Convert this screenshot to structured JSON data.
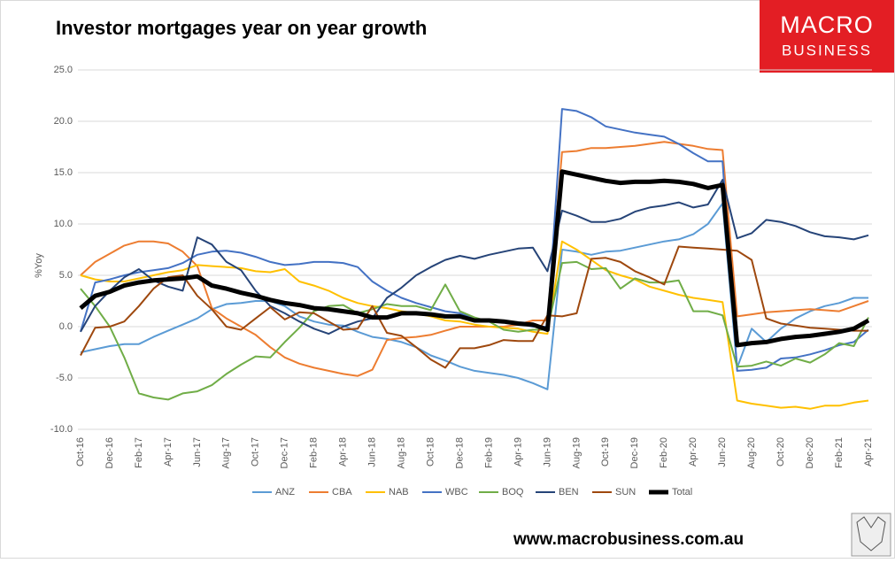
{
  "chart_data": {
    "type": "line",
    "title": "Investor mortgages year on year growth",
    "y_label": "%Yoy",
    "logo": [
      "MACRO",
      "BUSINESS"
    ],
    "footer": "www.macrobusiness.com.au",
    "categories": [
      "Oct-16",
      null,
      "Dec-16",
      null,
      "Feb-17",
      null,
      "Apr-17",
      null,
      "Jun-17",
      null,
      "Aug-17",
      null,
      "Oct-17",
      null,
      "Dec-17",
      null,
      "Feb-18",
      null,
      "Apr-18",
      null,
      "Jun-18",
      null,
      "Aug-18",
      null,
      "Oct-18",
      null,
      "Dec-18",
      null,
      "Feb-19",
      null,
      "Apr-19",
      null,
      "Jun-19",
      null,
      "Aug-19",
      null,
      "Oct-19",
      null,
      "Dec-19",
      null,
      "Feb-20",
      null,
      "Apr-20",
      null,
      "Jun-20",
      null,
      "Aug-20",
      null,
      "Oct-20",
      null,
      "Dec-20",
      null,
      "Feb-21",
      null,
      "Apr-21"
    ],
    "ylim": [
      -10,
      25
    ],
    "yticks": [
      {
        "value": -10,
        "label": "-10.0"
      },
      {
        "value": -5,
        "label": "-5.0"
      },
      {
        "value": 0,
        "label": "0.0"
      },
      {
        "value": 5,
        "label": "5.0"
      },
      {
        "value": 10,
        "label": "10.0"
      },
      {
        "value": 15,
        "label": "15.0"
      },
      {
        "value": 20,
        "label": "20.0"
      },
      {
        "value": 25,
        "label": "25.0"
      }
    ],
    "grid": true,
    "legend": "bottom",
    "series": [
      {
        "name": "ANZ",
        "color": "#5b9bd5",
        "width": 2,
        "values": [
          -2.5,
          -2.2,
          -1.9,
          -1.7,
          -1.7,
          -1.0,
          -0.4,
          0.2,
          0.8,
          1.7,
          2.2,
          2.3,
          2.5,
          2.5,
          2.0,
          1.0,
          0.5,
          0.2,
          0.1,
          -0.5,
          -1.0,
          -1.2,
          -1.5,
          -2.0,
          -2.8,
          -3.3,
          -3.9,
          -4.3,
          -4.5,
          -4.7,
          -5.0,
          -5.5,
          -6.1,
          7.5,
          7.3,
          7.0,
          7.3,
          7.4,
          7.7,
          8.0,
          8.3,
          8.5,
          9.0,
          10.0,
          12.0,
          -4.0,
          -0.2,
          -1.5,
          -0.2,
          0.8,
          1.5,
          2.0,
          2.3,
          2.8,
          2.8
        ]
      },
      {
        "name": "CBA",
        "color": "#ed7d31",
        "width": 2,
        "values": [
          5.0,
          6.3,
          7.1,
          7.9,
          8.3,
          8.3,
          8.1,
          7.3,
          5.9,
          1.8,
          0.8,
          0.0,
          -0.8,
          -2.0,
          -3.0,
          -3.6,
          -4.0,
          -4.3,
          -4.6,
          -4.8,
          -4.2,
          -1.3,
          -1.1,
          -1.0,
          -0.8,
          -0.4,
          0.0,
          0.0,
          0.0,
          0.0,
          0.2,
          0.6,
          0.6,
          17.0,
          17.1,
          17.4,
          17.4,
          17.5,
          17.6,
          17.8,
          18.0,
          17.8,
          17.6,
          17.3,
          17.2,
          1.0,
          1.2,
          1.4,
          1.5,
          1.6,
          1.7,
          1.6,
          1.5,
          2.0,
          2.5
        ]
      },
      {
        "name": "NAB",
        "color": "#ffc000",
        "width": 2,
        "values": [
          5.0,
          4.6,
          4.4,
          4.4,
          4.7,
          5.0,
          5.3,
          5.5,
          6.0,
          5.9,
          5.8,
          5.7,
          5.4,
          5.3,
          5.6,
          4.4,
          4.0,
          3.5,
          2.8,
          2.3,
          2.0,
          1.8,
          1.5,
          1.3,
          1.0,
          0.6,
          0.5,
          0.2,
          0.0,
          -0.1,
          -0.2,
          -0.5,
          -0.7,
          8.3,
          7.5,
          6.5,
          5.5,
          5.0,
          4.6,
          3.9,
          3.5,
          3.1,
          2.8,
          2.6,
          2.4,
          -7.2,
          -7.5,
          -7.7,
          -7.9,
          -7.8,
          -8.0,
          -7.7,
          -7.7,
          -7.4,
          -7.2
        ]
      },
      {
        "name": "WBC",
        "color": "#4472c4",
        "width": 2,
        "values": [
          -0.5,
          4.3,
          4.6,
          5.0,
          5.3,
          5.5,
          5.7,
          6.2,
          7.0,
          7.3,
          7.4,
          7.2,
          6.8,
          6.3,
          6.0,
          6.1,
          6.3,
          6.3,
          6.2,
          5.8,
          4.4,
          3.5,
          2.8,
          2.3,
          1.9,
          1.5,
          1.3,
          0.8,
          0.6,
          0.5,
          0.3,
          0.0,
          0.0,
          21.2,
          21.0,
          20.4,
          19.5,
          19.2,
          18.9,
          18.7,
          18.5,
          17.8,
          16.9,
          16.1,
          16.1,
          -4.3,
          -4.2,
          -4.0,
          -3.1,
          -3.0,
          -2.7,
          -2.3,
          -1.8,
          -1.5,
          -0.3
        ]
      },
      {
        "name": "BOQ",
        "color": "#70ad47",
        "width": 2,
        "values": [
          3.7,
          2.0,
          0.0,
          -3.0,
          -6.5,
          -6.9,
          -7.1,
          -6.5,
          -6.3,
          -5.7,
          -4.6,
          -3.7,
          -2.9,
          -3.0,
          -1.5,
          -0.1,
          1.5,
          2.0,
          2.1,
          1.3,
          1.7,
          2.2,
          2.0,
          2.0,
          1.6,
          4.1,
          1.5,
          0.9,
          0.5,
          -0.3,
          -0.5,
          -0.3,
          -0.3,
          6.2,
          6.3,
          5.6,
          5.7,
          3.7,
          4.7,
          4.3,
          4.3,
          4.5,
          1.5,
          1.5,
          1.1,
          -3.9,
          -3.8,
          -3.4,
          -3.8,
          -3.1,
          -3.5,
          -2.7,
          -1.6,
          -1.9,
          0.9
        ]
      },
      {
        "name": "BEN",
        "color": "#264478",
        "width": 2,
        "values": [
          -0.5,
          2.0,
          3.5,
          4.8,
          5.6,
          4.5,
          3.9,
          3.5,
          8.7,
          8.0,
          6.3,
          5.5,
          3.5,
          2.0,
          1.3,
          0.5,
          -0.2,
          -0.7,
          0.0,
          0.5,
          0.8,
          2.8,
          3.8,
          5.0,
          5.8,
          6.5,
          6.9,
          6.6,
          7.0,
          7.3,
          7.6,
          7.7,
          5.4,
          11.3,
          10.8,
          10.2,
          10.2,
          10.5,
          11.2,
          11.6,
          11.8,
          12.1,
          11.6,
          11.9,
          14.3,
          8.6,
          9.1,
          10.4,
          10.2,
          9.8,
          9.2,
          8.8,
          8.7,
          8.5,
          8.9
        ]
      },
      {
        "name": "SUN",
        "color": "#9e480e",
        "width": 2,
        "values": [
          -2.8,
          -0.1,
          0.0,
          0.5,
          2.0,
          3.7,
          4.8,
          5.0,
          3.0,
          1.7,
          0.0,
          -0.3,
          0.8,
          1.9,
          0.7,
          1.4,
          1.3,
          0.5,
          -0.3,
          -0.2,
          2.0,
          -0.6,
          -0.9,
          -2.0,
          -3.2,
          -4.0,
          -2.1,
          -2.1,
          -1.8,
          -1.3,
          -1.4,
          -1.4,
          1.1,
          1.0,
          1.3,
          6.6,
          6.7,
          6.3,
          5.4,
          4.8,
          4.1,
          7.8,
          7.7,
          7.6,
          7.5,
          7.4,
          6.5,
          0.8,
          0.3,
          0.1,
          -0.1,
          -0.2,
          -0.3,
          -0.4,
          -0.4
        ]
      },
      {
        "name": "Total",
        "color": "#000000",
        "width": 5,
        "values": [
          1.8,
          3.0,
          3.4,
          4.0,
          4.3,
          4.5,
          4.6,
          4.7,
          4.9,
          4.0,
          3.7,
          3.3,
          3.0,
          2.6,
          2.3,
          2.1,
          1.8,
          1.7,
          1.5,
          1.3,
          0.9,
          0.9,
          1.3,
          1.3,
          1.2,
          1.0,
          1.0,
          0.6,
          0.6,
          0.5,
          0.3,
          0.2,
          -0.3,
          15.1,
          14.8,
          14.5,
          14.2,
          14.0,
          14.1,
          14.1,
          14.2,
          14.1,
          13.9,
          13.5,
          13.8,
          -1.8,
          -1.6,
          -1.5,
          -1.2,
          -1.0,
          -0.9,
          -0.7,
          -0.5,
          -0.2,
          0.6
        ]
      }
    ]
  }
}
